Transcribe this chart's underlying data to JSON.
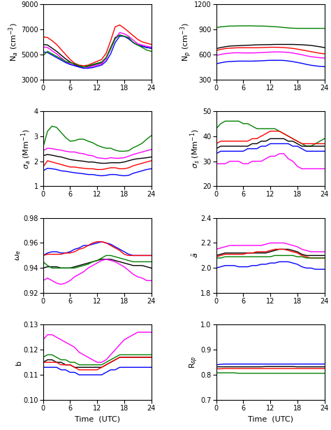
{
  "colors": [
    "red",
    "black",
    "magenta",
    "blue",
    "green"
  ],
  "x_ticks": [
    0,
    6,
    12,
    18,
    24
  ],
  "xlim": [
    0,
    24
  ],
  "xlabel": "Time  (UTC)",
  "Na": {
    "ylabel": "N$_a$ (cm$^{-3}$)",
    "ylim": [
      3000,
      9000
    ],
    "yticks": [
      3000,
      5000,
      7000,
      9000
    ],
    "lines": {
      "red": [
        6400,
        6350,
        6100,
        5800,
        5400,
        5000,
        4600,
        4300,
        4150,
        4100,
        4150,
        4300,
        4450,
        4600,
        5100,
        6100,
        7200,
        7350,
        7100,
        6800,
        6500,
        6200,
        6000,
        5900,
        5800
      ],
      "black": [
        5800,
        5750,
        5500,
        5250,
        4950,
        4650,
        4400,
        4200,
        4050,
        4000,
        4050,
        4150,
        4250,
        4350,
        4750,
        5550,
        6350,
        6550,
        6450,
        6250,
        5950,
        5750,
        5650,
        5550,
        5500
      ],
      "magenta": [
        5600,
        5550,
        5300,
        5050,
        4750,
        4450,
        4250,
        4100,
        4000,
        3900,
        3950,
        4050,
        4150,
        4250,
        4650,
        5450,
        6250,
        6750,
        6650,
        6450,
        6150,
        5850,
        5750,
        5650,
        5600
      ],
      "blue": [
        5200,
        5150,
        4950,
        4750,
        4550,
        4350,
        4200,
        4100,
        4000,
        3900,
        3900,
        3950,
        4050,
        4150,
        4450,
        5050,
        5950,
        6450,
        6450,
        6250,
        5950,
        5750,
        5650,
        5550,
        5500
      ],
      "green": [
        4900,
        5250,
        5050,
        4850,
        4650,
        4450,
        4350,
        4250,
        4100,
        4000,
        4100,
        4200,
        4300,
        4400,
        4750,
        5450,
        6250,
        6550,
        6450,
        6350,
        5950,
        5750,
        5550,
        5350,
        5250
      ]
    }
  },
  "Np": {
    "ylabel": "N$_p$ (cm$^{-3}$)",
    "ylim": [
      300,
      1200
    ],
    "yticks": [
      300,
      600,
      900,
      1200
    ],
    "lines": {
      "green": [
        920,
        930,
        935,
        940,
        940,
        942,
        942,
        942,
        942,
        940,
        940,
        938,
        935,
        932,
        928,
        922,
        918,
        914,
        912,
        912,
        912,
        912,
        912,
        912,
        912
      ],
      "black": [
        670,
        682,
        692,
        700,
        703,
        705,
        708,
        710,
        712,
        715,
        716,
        717,
        718,
        720,
        720,
        720,
        720,
        720,
        718,
        716,
        712,
        708,
        700,
        692,
        682
      ],
      "red": [
        648,
        660,
        670,
        675,
        678,
        680,
        680,
        680,
        680,
        680,
        682,
        684,
        686,
        686,
        685,
        682,
        678,
        672,
        664,
        654,
        644,
        634,
        624,
        614,
        608
      ],
      "magenta": [
        588,
        600,
        610,
        615,
        620,
        620,
        618,
        618,
        618,
        620,
        622,
        625,
        628,
        630,
        630,
        628,
        624,
        617,
        607,
        597,
        584,
        574,
        567,
        561,
        557
      ],
      "blue": [
        488,
        500,
        510,
        515,
        518,
        520,
        520,
        520,
        520,
        522,
        524,
        527,
        530,
        530,
        530,
        528,
        522,
        514,
        504,
        494,
        481,
        471,
        464,
        457,
        454
      ]
    }
  },
  "sigma_a": {
    "ylabel": "$\\sigma_a$ (Mm$^{-1}$)",
    "ylim": [
      1,
      4
    ],
    "yticks": [
      1,
      2,
      3,
      4
    ],
    "lines": {
      "green": [
        2.55,
        3.2,
        3.4,
        3.35,
        3.15,
        2.95,
        2.8,
        2.82,
        2.88,
        2.88,
        2.8,
        2.74,
        2.64,
        2.57,
        2.52,
        2.52,
        2.44,
        2.4,
        2.4,
        2.42,
        2.54,
        2.62,
        2.72,
        2.88,
        3.02
      ],
      "magenta": [
        2.42,
        2.52,
        2.5,
        2.47,
        2.44,
        2.4,
        2.37,
        2.37,
        2.32,
        2.3,
        2.24,
        2.22,
        2.14,
        2.12,
        2.1,
        2.14,
        2.12,
        2.12,
        2.14,
        2.2,
        2.27,
        2.32,
        2.37,
        2.42,
        2.47
      ],
      "black": [
        2.22,
        2.27,
        2.24,
        2.2,
        2.17,
        2.12,
        2.07,
        2.04,
        2.02,
        2.0,
        1.97,
        1.97,
        1.94,
        1.92,
        1.92,
        1.94,
        1.94,
        1.94,
        1.97,
        2.02,
        2.07,
        2.1,
        2.12,
        2.14,
        2.17
      ],
      "red": [
        1.77,
        2.02,
        1.97,
        1.92,
        1.87,
        1.82,
        1.77,
        1.77,
        1.74,
        1.72,
        1.7,
        1.7,
        1.67,
        1.67,
        1.7,
        1.74,
        1.74,
        1.7,
        1.7,
        1.74,
        1.82,
        1.87,
        1.92,
        1.97,
        2.02
      ],
      "blue": [
        1.62,
        1.72,
        1.7,
        1.67,
        1.62,
        1.6,
        1.57,
        1.54,
        1.52,
        1.5,
        1.47,
        1.47,
        1.44,
        1.42,
        1.44,
        1.47,
        1.47,
        1.44,
        1.42,
        1.44,
        1.52,
        1.57,
        1.62,
        1.67,
        1.7
      ]
    }
  },
  "sigma_s": {
    "ylabel": "$\\sigma_s$ (Mm$^{-1}$)",
    "ylim": [
      20,
      50
    ],
    "yticks": [
      20,
      30,
      40,
      50
    ],
    "lines": {
      "green": [
        43,
        45,
        46,
        46,
        46,
        46,
        45,
        45,
        44,
        43,
        43,
        43,
        43,
        43,
        42,
        41,
        40,
        39,
        38,
        37,
        36,
        36,
        37,
        38,
        39
      ],
      "red": [
        37,
        38,
        38,
        38,
        38,
        38,
        38,
        38,
        39,
        39,
        40,
        41,
        42,
        42,
        42,
        41,
        40,
        39,
        38,
        37,
        37,
        37,
        37,
        37,
        37
      ],
      "black": [
        35,
        36,
        36,
        36,
        36,
        36,
        36,
        36,
        37,
        37,
        38,
        38,
        39,
        39,
        39,
        39,
        38,
        38,
        37,
        36,
        36,
        36,
        36,
        36,
        36
      ],
      "blue": [
        33,
        34,
        34,
        34,
        34,
        34,
        34,
        35,
        35,
        35,
        36,
        36,
        37,
        37,
        37,
        37,
        37,
        36,
        36,
        35,
        34,
        34,
        34,
        34,
        34
      ],
      "magenta": [
        29,
        29,
        29,
        30,
        30,
        30,
        29,
        29,
        30,
        30,
        30,
        31,
        32,
        32,
        33,
        33,
        31,
        30,
        28,
        27,
        27,
        27,
        27,
        27,
        27
      ]
    }
  },
  "omega": {
    "ylabel": "$\\omega_e$",
    "ylim": [
      0.92,
      0.98
    ],
    "yticks": [
      0.92,
      0.94,
      0.96,
      0.98
    ],
    "lines": {
      "blue": [
        0.95,
        0.952,
        0.953,
        0.953,
        0.952,
        0.952,
        0.953,
        0.955,
        0.956,
        0.958,
        0.958,
        0.959,
        0.96,
        0.961,
        0.96,
        0.959,
        0.957,
        0.955,
        0.953,
        0.951,
        0.95,
        0.95,
        0.95,
        0.95,
        0.95
      ],
      "red": [
        0.95,
        0.951,
        0.951,
        0.951,
        0.951,
        0.952,
        0.952,
        0.953,
        0.955,
        0.956,
        0.958,
        0.96,
        0.961,
        0.961,
        0.96,
        0.958,
        0.956,
        0.954,
        0.951,
        0.95,
        0.95,
        0.95,
        0.95,
        0.95,
        0.95
      ],
      "black": [
        0.94,
        0.941,
        0.941,
        0.941,
        0.94,
        0.94,
        0.94,
        0.941,
        0.942,
        0.943,
        0.944,
        0.945,
        0.946,
        0.947,
        0.947,
        0.947,
        0.946,
        0.945,
        0.944,
        0.943,
        0.942,
        0.942,
        0.942,
        0.941,
        0.94
      ],
      "green": [
        0.945,
        0.942,
        0.94,
        0.94,
        0.94,
        0.94,
        0.94,
        0.94,
        0.941,
        0.942,
        0.943,
        0.945,
        0.946,
        0.948,
        0.95,
        0.95,
        0.949,
        0.948,
        0.947,
        0.946,
        0.945,
        0.945,
        0.945,
        0.945,
        0.945
      ],
      "magenta": [
        0.93,
        0.932,
        0.93,
        0.928,
        0.927,
        0.928,
        0.93,
        0.933,
        0.935,
        0.937,
        0.94,
        0.942,
        0.944,
        0.946,
        0.947,
        0.946,
        0.945,
        0.943,
        0.941,
        0.938,
        0.935,
        0.933,
        0.932,
        0.93,
        0.93
      ]
    }
  },
  "alpha": {
    "ylabel": "$\\bar{a}$",
    "ylim": [
      1.8,
      2.4
    ],
    "yticks": [
      1.8,
      2.0,
      2.2,
      2.4
    ],
    "lines": {
      "magenta": [
        2.15,
        2.16,
        2.17,
        2.18,
        2.18,
        2.18,
        2.18,
        2.18,
        2.18,
        2.18,
        2.18,
        2.19,
        2.2,
        2.2,
        2.2,
        2.2,
        2.19,
        2.18,
        2.17,
        2.15,
        2.14,
        2.13,
        2.13,
        2.13,
        2.13
      ],
      "black": [
        2.1,
        2.11,
        2.12,
        2.12,
        2.12,
        2.12,
        2.12,
        2.12,
        2.12,
        2.12,
        2.12,
        2.12,
        2.13,
        2.14,
        2.15,
        2.15,
        2.15,
        2.14,
        2.13,
        2.11,
        2.1,
        2.1,
        2.1,
        2.1,
        2.1
      ],
      "red": [
        2.09,
        2.1,
        2.11,
        2.11,
        2.11,
        2.11,
        2.11,
        2.12,
        2.12,
        2.13,
        2.13,
        2.13,
        2.14,
        2.15,
        2.15,
        2.15,
        2.14,
        2.13,
        2.12,
        2.1,
        2.09,
        2.08,
        2.08,
        2.08,
        2.08
      ],
      "blue": [
        2.0,
        2.01,
        2.02,
        2.02,
        2.02,
        2.01,
        2.01,
        2.01,
        2.02,
        2.02,
        2.03,
        2.03,
        2.04,
        2.04,
        2.05,
        2.05,
        2.05,
        2.04,
        2.03,
        2.01,
        2.0,
        2.0,
        1.99,
        1.99,
        1.99
      ],
      "green": [
        2.08,
        2.08,
        2.09,
        2.09,
        2.09,
        2.09,
        2.09,
        2.09,
        2.09,
        2.09,
        2.09,
        2.09,
        2.09,
        2.1,
        2.1,
        2.1,
        2.1,
        2.1,
        2.09,
        2.09,
        2.08,
        2.08,
        2.08,
        2.08,
        2.08
      ]
    }
  },
  "b": {
    "ylabel": "b",
    "ylim": [
      0.1,
      0.13
    ],
    "yticks": [
      0.1,
      0.11,
      0.12,
      0.13
    ],
    "lines": {
      "magenta": [
        0.124,
        0.126,
        0.126,
        0.125,
        0.124,
        0.123,
        0.122,
        0.121,
        0.119,
        0.118,
        0.117,
        0.116,
        0.115,
        0.115,
        0.116,
        0.118,
        0.12,
        0.122,
        0.124,
        0.125,
        0.126,
        0.127,
        0.127,
        0.127,
        0.127
      ],
      "green": [
        0.117,
        0.118,
        0.118,
        0.117,
        0.116,
        0.116,
        0.115,
        0.115,
        0.114,
        0.114,
        0.114,
        0.114,
        0.114,
        0.114,
        0.115,
        0.116,
        0.117,
        0.118,
        0.118,
        0.118,
        0.118,
        0.118,
        0.118,
        0.118,
        0.118
      ],
      "black": [
        0.115,
        0.116,
        0.116,
        0.115,
        0.115,
        0.114,
        0.114,
        0.113,
        0.113,
        0.113,
        0.113,
        0.113,
        0.113,
        0.113,
        0.114,
        0.115,
        0.116,
        0.117,
        0.117,
        0.117,
        0.117,
        0.117,
        0.117,
        0.117,
        0.117
      ],
      "red": [
        0.115,
        0.115,
        0.115,
        0.115,
        0.114,
        0.114,
        0.114,
        0.113,
        0.112,
        0.112,
        0.112,
        0.112,
        0.112,
        0.113,
        0.114,
        0.115,
        0.116,
        0.117,
        0.117,
        0.117,
        0.117,
        0.117,
        0.117,
        0.117,
        0.117
      ],
      "blue": [
        0.113,
        0.113,
        0.113,
        0.113,
        0.112,
        0.112,
        0.111,
        0.111,
        0.11,
        0.11,
        0.11,
        0.11,
        0.11,
        0.11,
        0.111,
        0.112,
        0.112,
        0.113,
        0.113,
        0.113,
        0.113,
        0.113,
        0.113,
        0.113,
        0.113
      ]
    }
  },
  "Rsp": {
    "ylabel": "R$_{sp}$",
    "ylim": [
      0.7,
      1.0
    ],
    "yticks": [
      0.7,
      0.8,
      0.9,
      1.0
    ],
    "lines": {
      "blue": [
        0.84,
        0.842,
        0.843,
        0.843,
        0.843,
        0.843,
        0.843,
        0.843,
        0.843,
        0.843,
        0.843,
        0.843,
        0.843,
        0.843,
        0.843,
        0.843,
        0.843,
        0.843,
        0.843,
        0.843,
        0.843,
        0.843,
        0.843,
        0.843,
        0.843
      ],
      "black": [
        0.832,
        0.832,
        0.832,
        0.832,
        0.832,
        0.832,
        0.832,
        0.832,
        0.832,
        0.832,
        0.832,
        0.833,
        0.833,
        0.833,
        0.833,
        0.833,
        0.833,
        0.833,
        0.832,
        0.832,
        0.832,
        0.832,
        0.832,
        0.832,
        0.832
      ],
      "red": [
        0.824,
        0.824,
        0.825,
        0.825,
        0.825,
        0.825,
        0.825,
        0.825,
        0.825,
        0.825,
        0.825,
        0.825,
        0.825,
        0.825,
        0.825,
        0.825,
        0.825,
        0.825,
        0.825,
        0.825,
        0.825,
        0.825,
        0.825,
        0.825,
        0.825
      ],
      "green": [
        0.808,
        0.808,
        0.808,
        0.808,
        0.808,
        0.806,
        0.806,
        0.806,
        0.806,
        0.806,
        0.806,
        0.806,
        0.806,
        0.806,
        0.806,
        0.806,
        0.806,
        0.806,
        0.806,
        0.806,
        0.806,
        0.806,
        0.806,
        0.806,
        0.806
      ]
    }
  }
}
